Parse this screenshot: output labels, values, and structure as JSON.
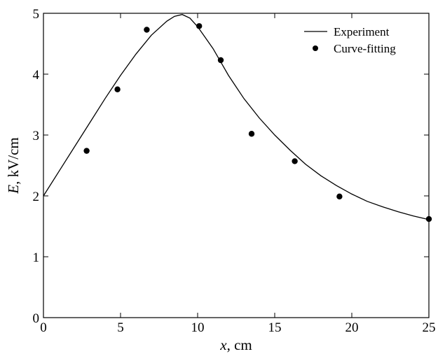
{
  "chart_data": {
    "type": "line",
    "title": "",
    "xlabel": {
      "var": "x",
      "unit": ", cm"
    },
    "ylabel": {
      "var": "E",
      "unit": ", kV/cm"
    },
    "xlim": [
      0,
      25
    ],
    "ylim": [
      0,
      5
    ],
    "xticks": [
      0,
      5,
      10,
      15,
      20,
      25
    ],
    "yticks": [
      0,
      1,
      2,
      3,
      4,
      5
    ],
    "grid": false,
    "legend_position": "top-right",
    "series": [
      {
        "name": "Experiment",
        "kind": "line",
        "color": "#000000",
        "x": [
          0,
          1,
          2,
          3,
          4,
          5,
          6,
          7,
          8,
          8.5,
          9,
          9.5,
          10,
          10.5,
          11,
          11.5,
          12,
          13,
          14,
          15,
          16,
          17,
          18,
          19,
          20,
          21,
          22,
          23,
          24,
          25
        ],
        "y": [
          2.0,
          2.4,
          2.8,
          3.2,
          3.6,
          3.98,
          4.33,
          4.64,
          4.87,
          4.95,
          4.98,
          4.92,
          4.78,
          4.6,
          4.42,
          4.2,
          3.98,
          3.6,
          3.28,
          3.0,
          2.75,
          2.52,
          2.33,
          2.17,
          2.03,
          1.91,
          1.82,
          1.74,
          1.67,
          1.61
        ]
      },
      {
        "name": "Curve-fitting",
        "kind": "scatter",
        "color": "#000000",
        "x": [
          2.8,
          4.8,
          6.7,
          10.1,
          11.5,
          13.5,
          16.3,
          19.2,
          25.0
        ],
        "y": [
          2.74,
          3.75,
          4.73,
          4.79,
          4.23,
          3.02,
          2.57,
          1.99,
          1.62
        ]
      }
    ]
  }
}
